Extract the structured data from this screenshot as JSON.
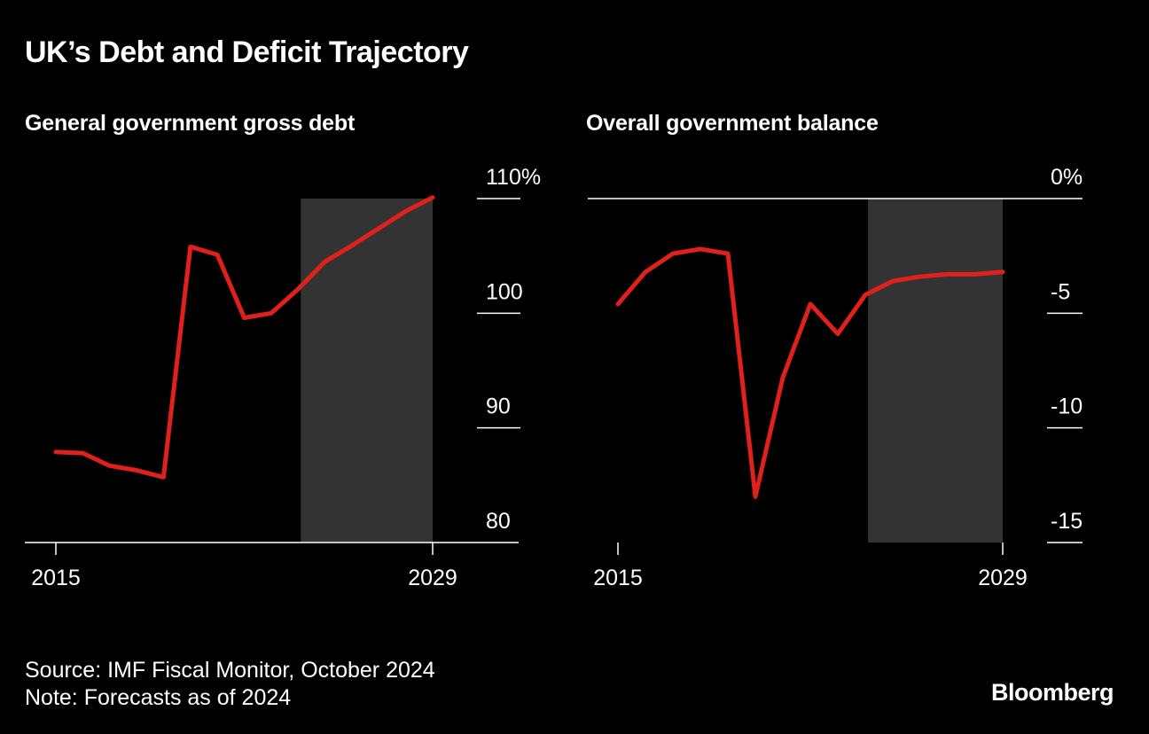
{
  "title": "UK’s Debt and Deficit Trajectory",
  "footer": {
    "source": "Source: IMF Fiscal Monitor, October 2024",
    "note": "Note: Forecasts as of 2024",
    "brand": "Bloomberg"
  },
  "colors": {
    "background": "#000000",
    "line": "#e0201b",
    "forecast_band": "#333333",
    "axis": "#ffffff",
    "text": "#ffffff"
  },
  "chart_data": [
    {
      "type": "line",
      "title": "General government gross debt",
      "xlabel": "",
      "ylabel": "",
      "x": [
        2015,
        2016,
        2017,
        2018,
        2019,
        2020,
        2021,
        2022,
        2023,
        2024,
        2025,
        2026,
        2027,
        2028,
        2029
      ],
      "series": [
        {
          "name": "General government gross debt",
          "values": [
            87.9,
            87.8,
            86.7,
            86.3,
            85.7,
            105.8,
            105.1,
            99.6,
            100.0,
            102.1,
            104.5,
            105.9,
            107.4,
            108.9,
            110.1
          ]
        }
      ],
      "ylim": [
        80,
        110
      ],
      "yticks": [
        80,
        90,
        100,
        110
      ],
      "ytick_labels": [
        "80",
        "90",
        "100",
        "110%"
      ],
      "xticks": [
        2015,
        2029
      ],
      "xtick_labels": [
        "2015",
        "2029"
      ],
      "forecast_range": [
        2024,
        2029
      ],
      "zero_line": false
    },
    {
      "type": "line",
      "title": "Overall government balance",
      "xlabel": "",
      "ylabel": "",
      "x": [
        2015,
        2016,
        2017,
        2018,
        2019,
        2020,
        2021,
        2022,
        2023,
        2024,
        2025,
        2026,
        2027,
        2028,
        2029
      ],
      "series": [
        {
          "name": "Overall government balance",
          "values": [
            -4.6,
            -3.2,
            -2.4,
            -2.2,
            -2.4,
            -13.0,
            -7.8,
            -4.6,
            -5.9,
            -4.2,
            -3.6,
            -3.4,
            -3.3,
            -3.3,
            -3.2
          ]
        }
      ],
      "ylim": [
        -15,
        0
      ],
      "yticks": [
        -15,
        -10,
        -5,
        0
      ],
      "ytick_labels": [
        "-15",
        "-10",
        "-5",
        "0%"
      ],
      "xticks": [
        2015,
        2029
      ],
      "xtick_labels": [
        "2015",
        "2029"
      ],
      "forecast_range": [
        2024,
        2029
      ],
      "zero_line": true
    }
  ]
}
